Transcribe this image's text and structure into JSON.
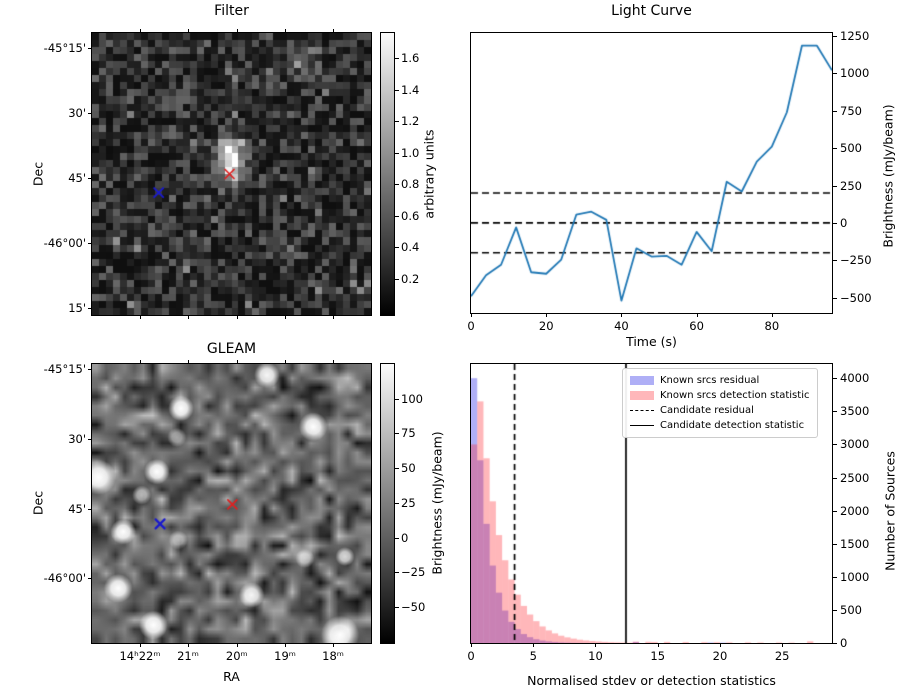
{
  "chart_data": [
    {
      "type": "heatmap",
      "title": "Filter",
      "ylabel": "Dec",
      "ytick_labels": [
        "-45°15'",
        "30'",
        "45'",
        "-46°00'",
        "15'"
      ],
      "xtick_labels": [],
      "colorbar": {
        "label": "arbitrary units",
        "ticks": [
          1.6,
          1.4,
          1.2,
          1.0,
          0.8,
          0.6,
          0.4,
          0.2
        ],
        "tick_labels": [
          "1.6",
          "1.4",
          "1.2",
          "1.0",
          "0.8",
          "0.6",
          "0.4",
          "0.2"
        ],
        "vmin": -0.03,
        "vmax": 1.76
      },
      "markers": [
        {
          "shape": "x",
          "semantic": "candidate-position",
          "color": "#e02020",
          "rx": 0.493,
          "ry": 0.5
        },
        {
          "shape": "x",
          "semantic": "reference-position",
          "color": "#1a1acc",
          "rx": 0.239,
          "ry": 0.566
        }
      ],
      "description": "Noisy pixelated grayscale filter image with a bright compact source just above the red x marker"
    },
    {
      "type": "line",
      "title": "Light Curve",
      "xlabel": "Time (s)",
      "ylabel": "Brightness (mJy/beam)",
      "line_color": "#1f77b4",
      "x": [
        0,
        4,
        8,
        12,
        16,
        20,
        24,
        28,
        32,
        36,
        40,
        44,
        48,
        52,
        56,
        60,
        64,
        68,
        72,
        76,
        80,
        84,
        88,
        92,
        96
      ],
      "y": [
        -490,
        -350,
        -280,
        -30,
        -330,
        -340,
        -245,
        55,
        75,
        20,
        -520,
        -170,
        -225,
        -220,
        -280,
        -60,
        -190,
        275,
        210,
        410,
        510,
        740,
        1185,
        1185,
        1020
      ],
      "xlim": [
        0,
        96
      ],
      "ylim": [
        -602,
        1270
      ],
      "xticks": [
        0,
        20,
        40,
        60,
        80
      ],
      "xtick_labels": [
        "0",
        "20",
        "40",
        "60",
        "80"
      ],
      "yticks": [
        -500,
        -250,
        0,
        250,
        500,
        750,
        1000,
        1250
      ],
      "ytick_labels": [
        "−500",
        "−250",
        "0",
        "250",
        "500",
        "750",
        "1000",
        "1250"
      ],
      "hlines": [
        {
          "y": 200,
          "style": "dashed"
        },
        {
          "y": 0,
          "style": "dashed"
        },
        {
          "y": -200,
          "style": "dashed"
        }
      ],
      "legend_position": "none",
      "grid": false
    },
    {
      "type": "heatmap",
      "title": "GLEAM",
      "xlabel": "RA",
      "ylabel": "Dec",
      "xtick_labels": [
        "14ʰ22ᵐ",
        "21ᵐ",
        "20ᵐ",
        "19ᵐ",
        "18ᵐ"
      ],
      "ytick_labels": [
        "-45°15'",
        "30'",
        "45'",
        "-46°00'"
      ],
      "colorbar": {
        "label": "Brightness (mJy/beam)",
        "ticks": [
          100,
          75,
          50,
          25,
          0,
          -25,
          -50
        ],
        "tick_labels": [
          "100",
          "75",
          "50",
          "25",
          "0",
          "−25",
          "−50"
        ],
        "vmin": -76,
        "vmax": 125
      },
      "markers": [
        {
          "shape": "x",
          "semantic": "candidate-position",
          "color": "#e02020",
          "rx": 0.503,
          "ry": 0.503
        },
        {
          "shape": "x",
          "semantic": "reference-position",
          "color": "#1a1acc",
          "rx": 0.244,
          "ry": 0.573
        }
      ],
      "description": "Smooth blurred grayscale GLEAM survey image with several bright white point sources"
    },
    {
      "type": "histogram",
      "xlabel": "Normalised stdev or detection statistics",
      "ylabel": "Number of Sources",
      "xlim": [
        0,
        29
      ],
      "ylim": [
        0,
        4214
      ],
      "xticks": [
        0,
        5,
        10,
        15,
        20,
        25
      ],
      "xtick_labels": [
        "0",
        "5",
        "10",
        "15",
        "20",
        "25"
      ],
      "yticks": [
        0,
        500,
        1000,
        1500,
        2000,
        2500,
        3000,
        3500,
        4000
      ],
      "ytick_labels": [
        "0",
        "500",
        "1000",
        "1500",
        "2000",
        "2500",
        "3000",
        "3500",
        "4000"
      ],
      "bin_start": 0,
      "bin_width": 0.5,
      "series": [
        {
          "name": "Known srcs residual",
          "color": "rgba(25,25,230,0.35)",
          "values": [
            4000,
            2760,
            1800,
            1170,
            760,
            490,
            320,
            210,
            135,
            88,
            57,
            37,
            24,
            16,
            10,
            7,
            4,
            3,
            2,
            1,
            1,
            1,
            0,
            0,
            0,
            0,
            15,
            0,
            0,
            0,
            0,
            0,
            0,
            0,
            0,
            0,
            0,
            0,
            8,
            0,
            6,
            0,
            0,
            0,
            0,
            0,
            0,
            0,
            0,
            0,
            0,
            0,
            0,
            0,
            0,
            0
          ]
        },
        {
          "name": "Known srcs detection statistic",
          "color": "rgba(255,30,40,0.32)",
          "values": [
            3000,
            3650,
            2790,
            2140,
            1630,
            1250,
            960,
            730,
            560,
            430,
            330,
            250,
            190,
            145,
            110,
            85,
            66,
            50,
            39,
            30,
            23,
            17,
            13,
            10,
            8,
            6,
            20,
            0,
            18,
            15,
            0,
            16,
            0,
            0,
            14,
            0,
            0,
            12,
            0,
            12,
            0,
            10,
            0,
            0,
            10,
            0,
            8,
            0,
            0,
            8,
            0,
            6,
            0,
            0,
            25,
            0
          ]
        }
      ],
      "vlines": [
        {
          "x": 3.5,
          "style": "dashed",
          "label": "Candidate residual"
        },
        {
          "x": 12.45,
          "style": "solid",
          "label": "Candidate detection statistic"
        }
      ],
      "legend": [
        "Known srcs residual",
        "Known srcs detection statistic",
        "Candidate residual",
        "Candidate detection statistic"
      ],
      "legend_position": "upper right"
    }
  ]
}
